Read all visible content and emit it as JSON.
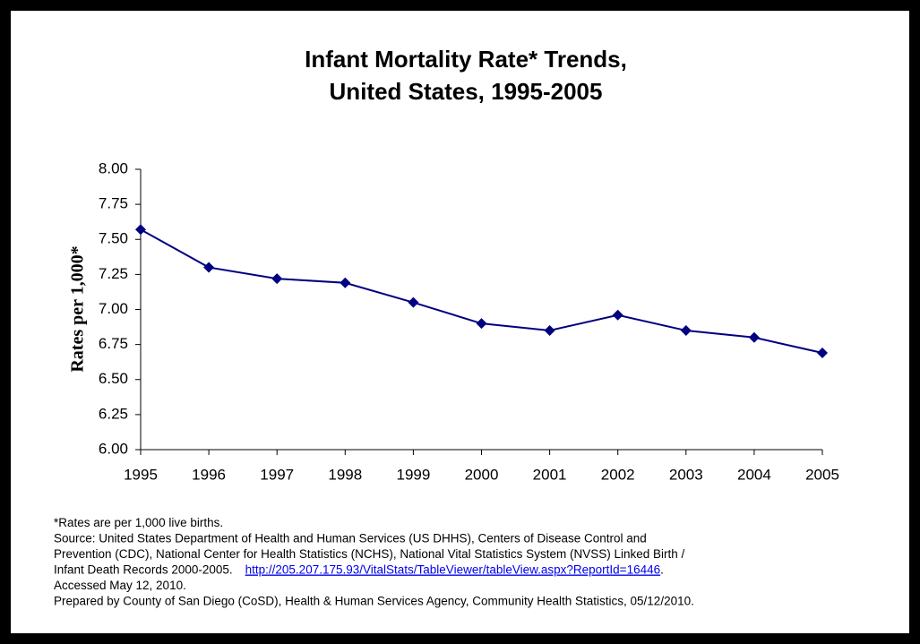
{
  "chart_data": {
    "type": "line",
    "title": [
      "Infant Mortality Rate* Trends,",
      "United States, 1995-2005"
    ],
    "ylabel": "Rates per 1,000*",
    "categories": [
      "1995",
      "1996",
      "1997",
      "1998",
      "1999",
      "2000",
      "2001",
      "2002",
      "2003",
      "2004",
      "2005"
    ],
    "series": [
      {
        "name": "Infant Mortality Rate",
        "color": "#000080",
        "values": [
          7.57,
          7.3,
          7.22,
          7.19,
          7.05,
          6.9,
          6.85,
          6.96,
          6.85,
          6.8,
          6.69
        ]
      }
    ],
    "ylim": [
      6,
      8
    ],
    "yticks": [
      {
        "value": 6,
        "label": "6.00"
      },
      {
        "value": 6.25,
        "label": "6.25"
      },
      {
        "value": 6.5,
        "label": "6.50"
      },
      {
        "value": 6.75,
        "label": "6.75"
      },
      {
        "value": 7,
        "label": "7.00"
      },
      {
        "value": 7.25,
        "label": "7.25"
      },
      {
        "value": 7.5,
        "label": "7.50"
      },
      {
        "value": 7.75,
        "label": "7.75"
      },
      {
        "value": 8,
        "label": "8.00"
      }
    ],
    "grid": false
  },
  "notes": {
    "lines": [
      "*Rates are per 1,000 live births.",
      "Source: United States Department of Health and Human Services (US DHHS), Centers of Disease Control and",
      "Prevention (CDC), National Center for Health Statistics (NCHS), National Vital Statistics System (NVSS) Linked Birth /"
    ],
    "line4_text": "Infant Death Records 2000-2005.",
    "link": "http://205.207.175.93/VitalStats/TableViewer/tableView.aspx?ReportId=16446",
    "link_suffix": ".",
    "tail": [
      "Accessed May 12, 2010.",
      "Prepared by County of San Diego (CoSD), Health & Human Services Agency, Community Health Statistics, 05/12/2010."
    ]
  }
}
